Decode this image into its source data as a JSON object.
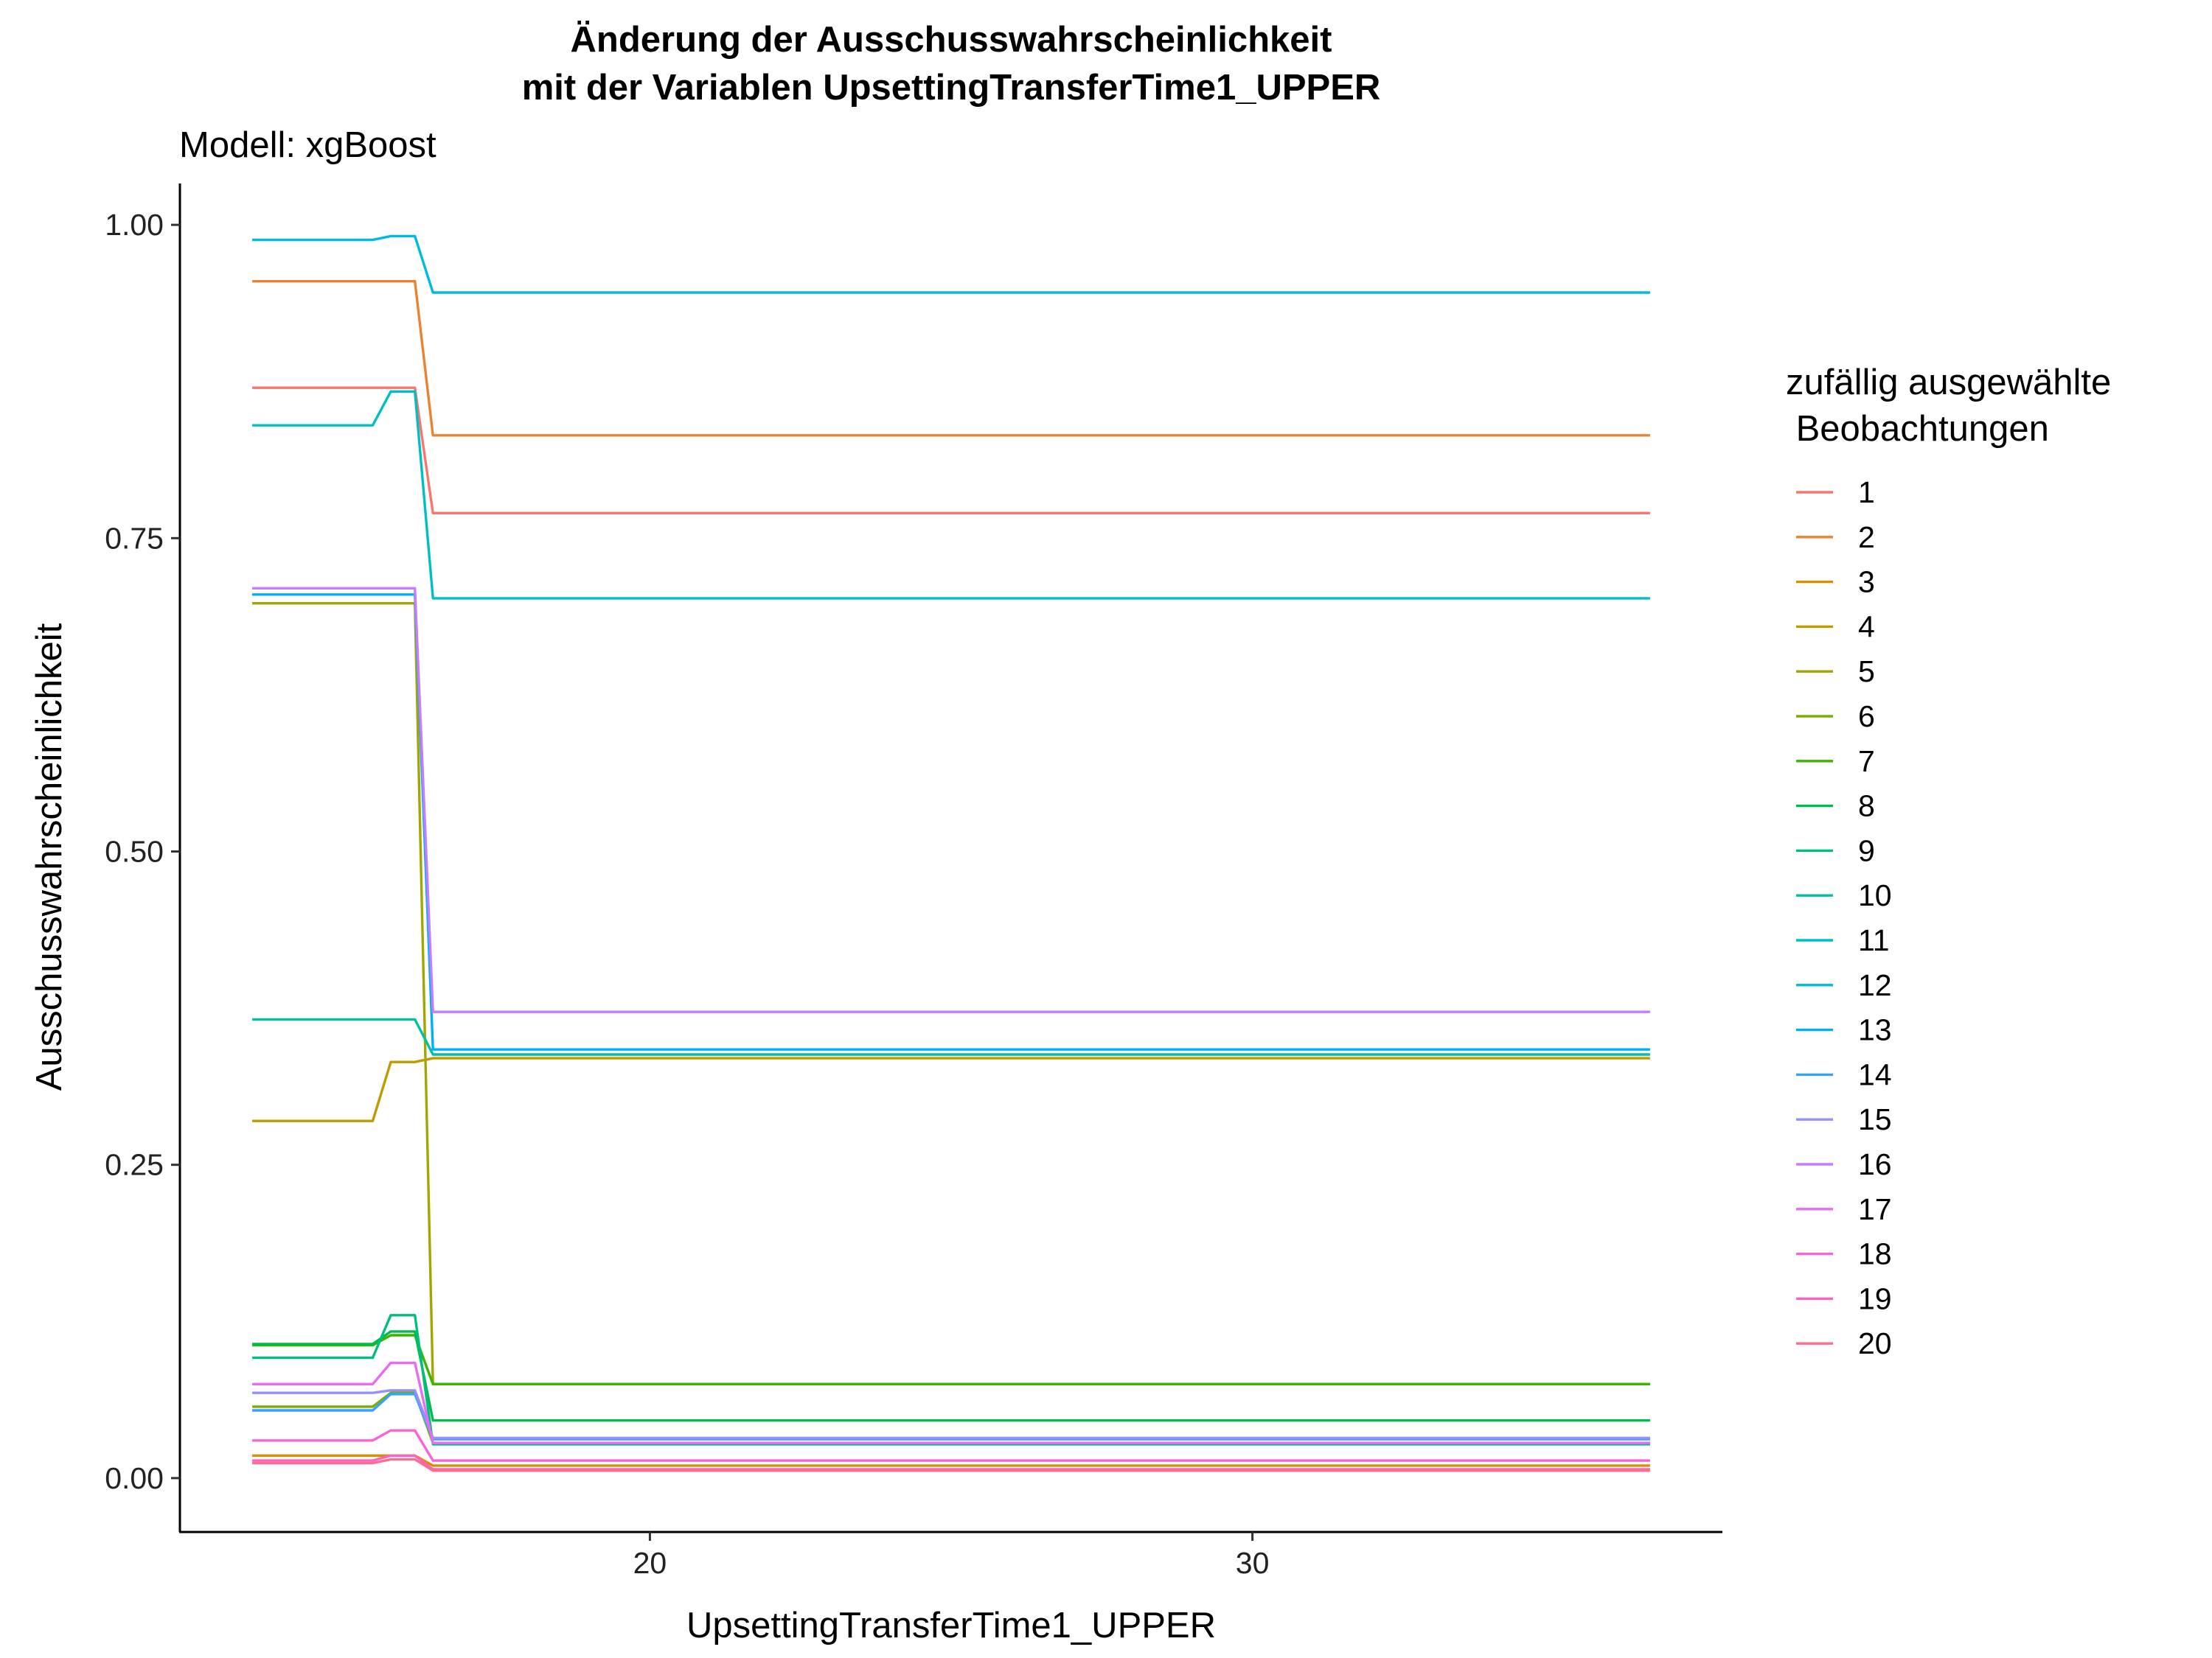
{
  "chart_data": {
    "type": "line",
    "title_line1": "Änderung der Ausschusswahrscheinlichkeit",
    "title_line2": "mit der Variablen UpsettingTransferTime1_UPPER",
    "subtitle": "Modell: xgBoost",
    "xlabel": "UpsettingTransferTime1_UPPER",
    "ylabel": "Ausschusswahrscheinlichkeit",
    "xlim": [
      12.2,
      37.8
    ],
    "ylim": [
      -0.043,
      1.033
    ],
    "x_ticks": [
      20,
      30
    ],
    "x_tick_labels": [
      "20",
      "30"
    ],
    "y_ticks": [
      0,
      0.25,
      0.5,
      0.75,
      1
    ],
    "y_tick_labels": [
      "0.00",
      "0.25",
      "0.50",
      "0.75",
      "1.00"
    ],
    "grid": false,
    "legend_position": "right",
    "legend_title_line1": "zufällig ausgewählte",
    "legend_title_line2": " Beobachtungen",
    "x": [
      13.4,
      15.4,
      15.7,
      16.1,
      16.4,
      36.6
    ],
    "series": [
      {
        "name": "1",
        "color": "#F8766D",
        "values": [
          0.87,
          0.87,
          0.87,
          0.87,
          0.77,
          0.77
        ]
      },
      {
        "name": "2",
        "color": "#EA8331",
        "values": [
          0.955,
          0.955,
          0.955,
          0.955,
          0.832,
          0.832
        ]
      },
      {
        "name": "3",
        "color": "#D89000",
        "values": [
          0.018,
          0.018,
          0.018,
          0.018,
          0.01,
          0.01
        ]
      },
      {
        "name": "4",
        "color": "#C09B00",
        "values": [
          0.285,
          0.285,
          0.332,
          0.332,
          0.335,
          0.335
        ]
      },
      {
        "name": "5",
        "color": "#A3A500",
        "values": [
          0.698,
          0.698,
          0.698,
          0.698,
          0.075,
          0.075
        ]
      },
      {
        "name": "6",
        "color": "#7CAE00",
        "values": [
          0.057,
          0.057,
          0.068,
          0.068,
          0.028,
          0.028
        ]
      },
      {
        "name": "7",
        "color": "#39B600",
        "values": [
          0.106,
          0.106,
          0.114,
          0.114,
          0.075,
          0.075
        ]
      },
      {
        "name": "8",
        "color": "#00BB4E",
        "values": [
          0.107,
          0.107,
          0.117,
          0.117,
          0.046,
          0.046
        ]
      },
      {
        "name": "9",
        "color": "#00BF7D",
        "values": [
          0.096,
          0.096,
          0.13,
          0.13,
          0.027,
          0.027
        ]
      },
      {
        "name": "10",
        "color": "#00C1A3",
        "values": [
          0.366,
          0.366,
          0.366,
          0.366,
          0.338,
          0.338
        ]
      },
      {
        "name": "11",
        "color": "#00BFC4",
        "values": [
          0.84,
          0.84,
          0.867,
          0.867,
          0.702,
          0.702
        ]
      },
      {
        "name": "12",
        "color": "#00BAE0",
        "values": [
          0.988,
          0.988,
          0.991,
          0.991,
          0.946,
          0.946
        ]
      },
      {
        "name": "13",
        "color": "#00B0F6",
        "values": [
          0.705,
          0.705,
          0.705,
          0.705,
          0.342,
          0.342
        ]
      },
      {
        "name": "14",
        "color": "#35A2FF",
        "values": [
          0.054,
          0.054,
          0.067,
          0.067,
          0.031,
          0.031
        ]
      },
      {
        "name": "15",
        "color": "#9590FF",
        "values": [
          0.068,
          0.068,
          0.07,
          0.07,
          0.032,
          0.032
        ]
      },
      {
        "name": "16",
        "color": "#C77CFF",
        "values": [
          0.71,
          0.71,
          0.71,
          0.71,
          0.372,
          0.372
        ]
      },
      {
        "name": "17",
        "color": "#E76BF3",
        "values": [
          0.075,
          0.075,
          0.092,
          0.092,
          0.028,
          0.028
        ]
      },
      {
        "name": "18",
        "color": "#FA62DB",
        "values": [
          0.03,
          0.03,
          0.038,
          0.038,
          0.014,
          0.014
        ]
      },
      {
        "name": "19",
        "color": "#FF62BC",
        "values": [
          0.014,
          0.014,
          0.018,
          0.018,
          0.007,
          0.007
        ]
      },
      {
        "name": "20",
        "color": "#FF6C91",
        "values": [
          0.012,
          0.012,
          0.015,
          0.015,
          0.006,
          0.006
        ]
      }
    ]
  }
}
